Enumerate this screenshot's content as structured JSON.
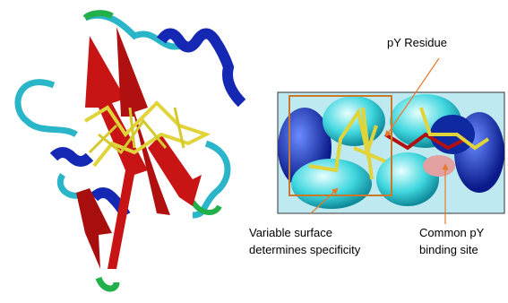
{
  "annotations": [
    {
      "lines": [
        "pY Residue"
      ]
    },
    {
      "lines": [
        "Variable surface",
        "determines specificity"
      ]
    },
    {
      "lines": [
        "Common pY",
        "binding site"
      ]
    }
  ]
}
